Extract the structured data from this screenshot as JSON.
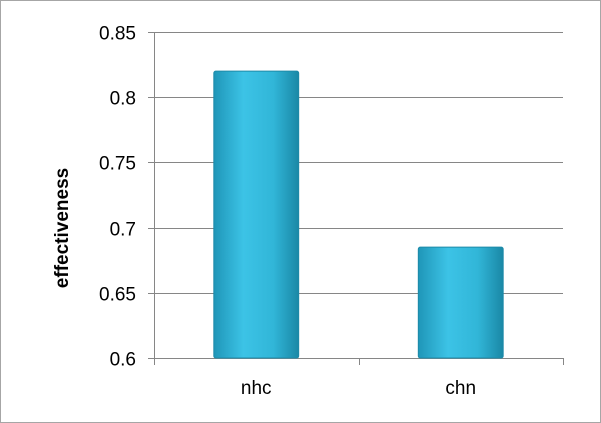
{
  "chart_data": {
    "type": "bar",
    "title": "",
    "xlabel": "",
    "ylabel": "effectiveness",
    "categories": [
      "nhc",
      "chn"
    ],
    "values": [
      0.82,
      0.685
    ],
    "ylim": [
      0.6,
      0.85
    ],
    "yticks": [
      "0.6",
      "0.65",
      "0.7",
      "0.75",
      "0.8",
      "0.85"
    ],
    "grid": true,
    "legend": "none",
    "colors": {
      "bar": "#31b6d8",
      "bar_dark": "#1d8aa8",
      "grid": "#868686",
      "axis": "#868686"
    }
  }
}
